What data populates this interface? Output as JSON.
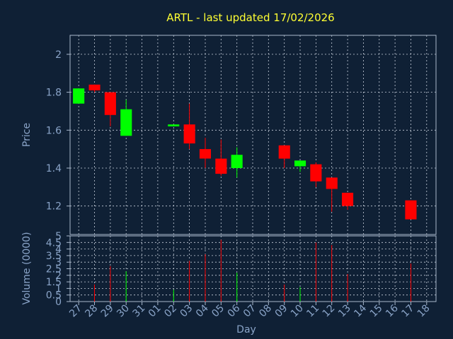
{
  "colors": {
    "background": "#0f2035",
    "axis": "#a8b8cc",
    "grid": "#c8d0dc",
    "label": "#8aa4c8",
    "title": "#ffff33",
    "up": "#00ff00",
    "down": "#ff0000"
  },
  "chart_data": {
    "type": "candlestick",
    "title": "ARTL - last updated 17/02/2026",
    "grid": true,
    "price_panel": {
      "ylabel": "Price",
      "ylim": [
        1.05,
        2.1
      ],
      "yticks": [
        1.2,
        1.4,
        1.6,
        1.8,
        2
      ],
      "ytick_labels": [
        "1.2",
        "1.4",
        "1.6",
        "1.8",
        "2"
      ]
    },
    "volume_panel": {
      "ylabel": "Volume (0000)",
      "ylim": [
        0,
        5
      ],
      "yticks": [
        0,
        0.5,
        1,
        1.5,
        2,
        2.5,
        3,
        3.5,
        4,
        4.5,
        5
      ],
      "ytick_labels": [
        "0",
        "0.5",
        "1",
        "1.5",
        "2",
        "2.5",
        "3",
        "3.5",
        "4",
        "4.5",
        "5"
      ]
    },
    "xlabel": "Day",
    "x_tick_labels": [
      "27",
      "28",
      "29",
      "30",
      "31",
      "01",
      "02",
      "03",
      "04",
      "05",
      "06",
      "07",
      "08",
      "09",
      "10",
      "11",
      "12",
      "13",
      "14",
      "15",
      "16",
      "17",
      "18"
    ],
    "candles": [
      {
        "day": "27",
        "open": 1.74,
        "high": 1.82,
        "low": 1.74,
        "close": 1.82,
        "volume": 0
      },
      {
        "day": "28",
        "open": 1.84,
        "high": 1.84,
        "low": 1.8,
        "close": 1.81,
        "volume": 1.3
      },
      {
        "day": "29",
        "open": 1.8,
        "high": 1.8,
        "low": 1.62,
        "close": 1.68,
        "volume": 2.7
      },
      {
        "day": "30",
        "open": 1.57,
        "high": 1.76,
        "low": 1.57,
        "close": 1.71,
        "volume": 2.3
      },
      {
        "day": "02",
        "open": 1.62,
        "high": 1.63,
        "low": 1.62,
        "close": 1.63,
        "volume": 0.9
      },
      {
        "day": "03",
        "open": 1.63,
        "high": 1.74,
        "low": 1.5,
        "close": 1.53,
        "volume": 3.1
      },
      {
        "day": "04",
        "open": 1.5,
        "high": 1.56,
        "low": 1.4,
        "close": 1.45,
        "volume": 3.6
      },
      {
        "day": "05",
        "open": 1.45,
        "high": 1.55,
        "low": 1.36,
        "close": 1.37,
        "volume": 4.7
      },
      {
        "day": "06",
        "open": 1.4,
        "high": 1.51,
        "low": 1.35,
        "close": 1.47,
        "volume": 2.2
      },
      {
        "day": "09",
        "open": 1.52,
        "high": 1.52,
        "low": 1.4,
        "close": 1.45,
        "volume": 1.3
      },
      {
        "day": "10",
        "open": 1.41,
        "high": 1.44,
        "low": 1.38,
        "close": 1.44,
        "volume": 1.1
      },
      {
        "day": "11",
        "open": 1.42,
        "high": 1.43,
        "low": 1.3,
        "close": 1.33,
        "volume": 4.5
      },
      {
        "day": "12",
        "open": 1.35,
        "high": 1.35,
        "low": 1.17,
        "close": 1.29,
        "volume": 4.3
      },
      {
        "day": "13",
        "open": 1.27,
        "high": 1.27,
        "low": 1.18,
        "close": 1.2,
        "volume": 2.1
      },
      {
        "day": "17",
        "open": 1.23,
        "high": 1.23,
        "low": 1.13,
        "close": 1.13,
        "volume": 2.9
      }
    ]
  }
}
